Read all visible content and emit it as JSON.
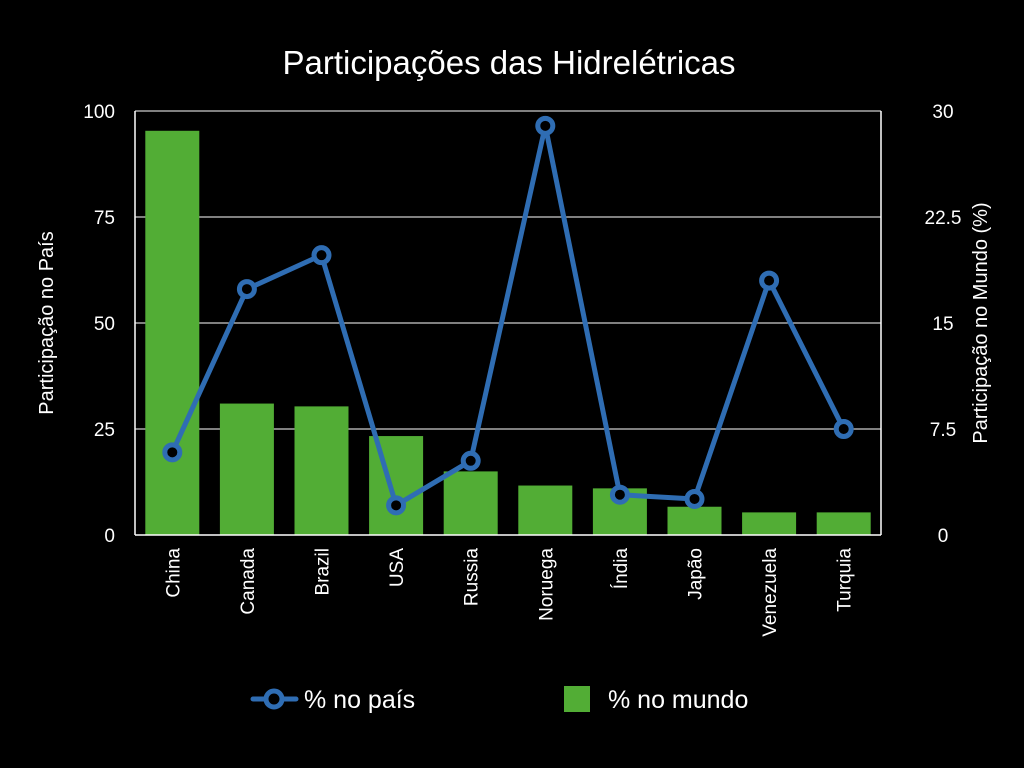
{
  "chart_data": {
    "type": "bar",
    "title": "Participações das Hidrelétricas",
    "categories": [
      "China",
      "Canada",
      "Brazil",
      "USA",
      "Russia",
      "Noruega",
      "Índia",
      "Japão",
      "Venezuela",
      "Turquia"
    ],
    "series": [
      {
        "name": "% no mundo",
        "type": "bar",
        "axis": "right",
        "values": [
          28.6,
          9.3,
          9.1,
          7.0,
          4.5,
          3.5,
          3.3,
          2.0,
          1.6,
          1.6
        ]
      },
      {
        "name": "% no país",
        "type": "line",
        "axis": "left",
        "values": [
          19.5,
          58.0,
          66.0,
          7.0,
          17.5,
          96.5,
          9.5,
          8.5,
          60.0,
          25.0
        ]
      }
    ],
    "ylabel_left": "Participação no País",
    "ylabel_right": "Participação no Mundo (%)",
    "ylim_left": [
      0,
      100
    ],
    "ylim_right": [
      0,
      30
    ],
    "yticks_left": [
      "0",
      "25",
      "50",
      "75",
      "100"
    ],
    "yticks_right": [
      "0",
      "7.5",
      "15",
      "22.5",
      "30"
    ],
    "grid": true,
    "legend_position": "bottom",
    "colors": {
      "background": "#000000",
      "bar": "#52ad35",
      "line": "#2f6db3",
      "marker_fill": "#000000",
      "text": "#ffffff"
    }
  }
}
